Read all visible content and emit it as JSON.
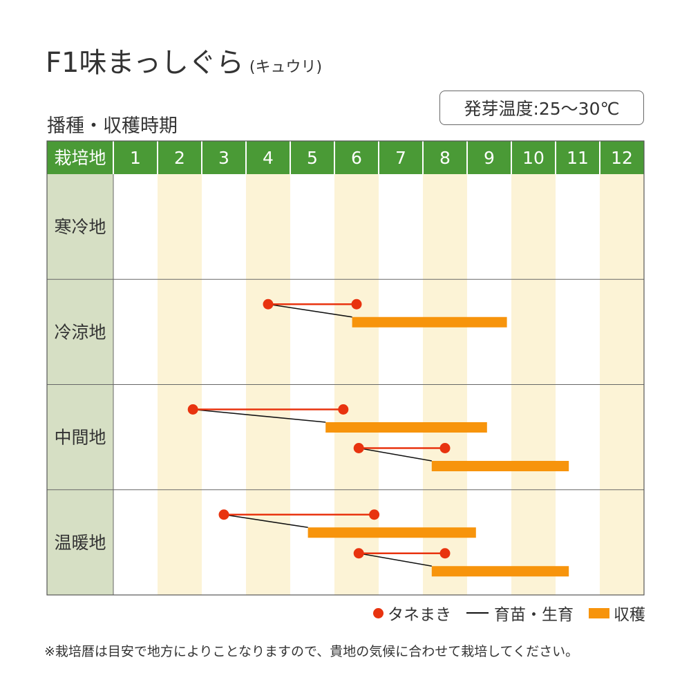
{
  "title": {
    "main": "F1味まっしぐら",
    "sub": "(キュウリ)"
  },
  "germination_temp": "発芽温度:25〜30℃",
  "section_title": "播種・収穫時期",
  "legend": {
    "sowing": "タネまき",
    "seedling": "育苗・生育",
    "harvest": "収穫"
  },
  "note": "※栽培暦は目安で地方によりことなりますので、貴地の気候に合わせて栽培してください。",
  "colors": {
    "header_green": "#4a9a36",
    "region_bg": "#d6dfc4",
    "stripe": "#fcf3d6",
    "sowing_red": "#e8330f",
    "harvest_orange": "#f7940c",
    "seedling_line": "#111111"
  },
  "chart_data": {
    "type": "table",
    "header_label": "栽培地",
    "months": [
      "1",
      "2",
      "3",
      "4",
      "5",
      "6",
      "7",
      "8",
      "9",
      "10",
      "11",
      "12"
    ],
    "regions": [
      {
        "name": "寒冷地",
        "schedules": []
      },
      {
        "name": "冷涼地",
        "schedules": [
          {
            "sow": [
              4.5,
              6.5
            ],
            "grow": [
              4.5,
              6.4
            ],
            "harvest": [
              6.4,
              9.9
            ]
          }
        ]
      },
      {
        "name": "中間地",
        "schedules": [
          {
            "sow": [
              2.8,
              6.2
            ],
            "grow": [
              2.8,
              5.8
            ],
            "harvest": [
              5.8,
              9.45
            ]
          },
          {
            "sow": [
              6.55,
              8.5
            ],
            "grow": [
              6.55,
              8.2
            ],
            "harvest": [
              8.2,
              11.3
            ]
          }
        ]
      },
      {
        "name": "温暖地",
        "schedules": [
          {
            "sow": [
              3.5,
              6.9
            ],
            "grow": [
              3.5,
              5.4
            ],
            "harvest": [
              5.4,
              9.2
            ]
          },
          {
            "sow": [
              6.55,
              8.5
            ],
            "grow": [
              6.55,
              8.2
            ],
            "harvest": [
              8.2,
              11.3
            ]
          }
        ]
      }
    ]
  }
}
